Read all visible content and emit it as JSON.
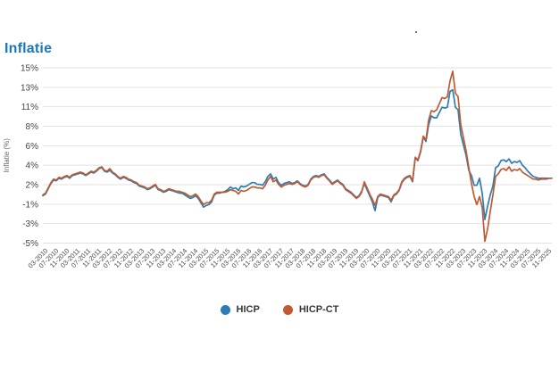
{
  "title": "Inflatie",
  "colors": {
    "title": "#1a78b6",
    "grid": "#e2e2e2",
    "y_axis_text": "#454545",
    "x_axis_text": "#4d4d4d",
    "axis_title_text": "#666666",
    "legend_text": "#383838",
    "hicp": "#2d7db3",
    "hicp_ct": "#c05a32"
  },
  "chart_data": {
    "type": "line",
    "title": "Inflatie",
    "xlabel": "",
    "ylabel": "Inflatie (%)",
    "ylim": [
      -5,
      15
    ],
    "grid": true,
    "legend_position": "bottom-center",
    "y_tick_labels": [
      "15%",
      "13%",
      "11%",
      "8%",
      "6%",
      "4%",
      "2%",
      "-1%",
      "-3%",
      "-5%"
    ],
    "x_start": "01-2010",
    "x_end": "11-2025",
    "x_frequency": "monthly",
    "x_tick_first_index": 2,
    "x_tick_step": 4,
    "x_tick_labels": [
      "03-2010",
      "07-2010",
      "11-2010",
      "03-2011",
      "07-2011",
      "11-2011",
      "03-2012",
      "07-2012",
      "11-2012",
      "03-2013",
      "07-2013",
      "11-2013",
      "03-2014",
      "07-2014",
      "11-2014",
      "03-2015",
      "07-2015",
      "11-2015",
      "03-2016",
      "07-2016",
      "11-2016",
      "03-2017",
      "07-2017",
      "11-2017",
      "03-2018",
      "07-2018",
      "11-2018",
      "03-2019",
      "07-2019",
      "11-2019",
      "03-2020",
      "07-2020",
      "11-2020",
      "03-2021",
      "07-2021",
      "11-2021",
      "03-2022",
      "07-2022",
      "11-2022",
      "03-2023",
      "07-2023",
      "11-2023",
      "03-2024",
      "07-2024",
      "11-2024",
      "03-2025",
      "07-2025",
      "11-2025"
    ],
    "series": [
      {
        "name": "HICP",
        "color": "#2d7db3",
        "values_by_year": {
          "2010": [
            0.4,
            0.6,
            1.2,
            1.8,
            2.2,
            2.1,
            2.4,
            2.3,
            2.5,
            2.6,
            2.4,
            2.7
          ],
          "2011": [
            2.8,
            2.9,
            3.0,
            2.9,
            2.7,
            2.9,
            3.1,
            3.0,
            3.2,
            3.5,
            3.6,
            3.2
          ],
          "2012": [
            3.1,
            3.3,
            3.0,
            2.8,
            2.5,
            2.3,
            2.5,
            2.4,
            2.2,
            2.1,
            1.9,
            1.8
          ],
          "2013": [
            1.5,
            1.4,
            1.3,
            1.1,
            1.2,
            1.4,
            1.6,
            1.1,
            1.0,
            0.8,
            0.9,
            1.1
          ],
          "2014": [
            1.0,
            0.9,
            0.8,
            0.7,
            0.7,
            0.5,
            0.3,
            0.1,
            0.2,
            0.4,
            0.1,
            -0.4
          ],
          "2015": [
            -0.9,
            -0.7,
            -0.6,
            -0.3,
            0.5,
            0.7,
            0.7,
            0.8,
            0.9,
            1.1,
            1.4,
            1.2
          ],
          "2016": [
            1.3,
            1.0,
            1.5,
            1.4,
            1.5,
            1.7,
            1.9,
            1.9,
            1.7,
            1.7,
            1.6,
            2.0
          ],
          "2017": [
            2.6,
            2.9,
            2.3,
            2.5,
            1.9,
            1.6,
            1.8,
            1.9,
            2.0,
            1.8,
            1.9,
            2.1
          ],
          "2018": [
            1.8,
            1.6,
            1.5,
            1.7,
            2.3,
            2.6,
            2.7,
            2.6,
            2.8,
            2.9,
            2.5,
            2.2
          ],
          "2019": [
            1.8,
            2.0,
            2.2,
            1.9,
            1.7,
            1.2,
            1.0,
            0.8,
            0.5,
            0.2,
            0.4,
            0.9
          ],
          "2020": [
            1.8,
            1.1,
            0.4,
            -0.3,
            -1.3,
            0.2,
            0.5,
            0.4,
            0.3,
            0.2,
            -0.3,
            0.4
          ],
          "2021": [
            0.6,
            1.0,
            1.9,
            2.3,
            2.5,
            2.6,
            2.0,
            4.7,
            4.4,
            5.4,
            7.1,
            6.6
          ],
          "2022": [
            8.5,
            9.5,
            9.3,
            9.3,
            9.9,
            10.5,
            10.4,
            10.5,
            12.3,
            12.5,
            10.5,
            10.2
          ],
          "2023": [
            7.4,
            6.2,
            5.0,
            3.3,
            2.7,
            1.6,
            1.6,
            2.4,
            0.7,
            -2.3,
            -0.8,
            0.5
          ],
          "2024": [
            1.5,
            3.6,
            3.8,
            4.4,
            4.5,
            4.3,
            4.6,
            4.1,
            4.3,
            4.2,
            4.4,
            3.9
          ],
          "2025": [
            3.6,
            3.2,
            2.9,
            2.6,
            2.5,
            2.4,
            2.4,
            2.4,
            2.4,
            2.4,
            2.4
          ]
        }
      },
      {
        "name": "HICP-CT",
        "color": "#c05a32",
        "values_by_year": {
          "2010": [
            0.5,
            0.7,
            1.3,
            1.9,
            2.3,
            2.2,
            2.5,
            2.4,
            2.6,
            2.7,
            2.5,
            2.8
          ],
          "2011": [
            2.9,
            3.0,
            3.1,
            3.0,
            2.8,
            3.0,
            3.2,
            3.1,
            3.3,
            3.6,
            3.7,
            3.3
          ],
          "2012": [
            3.2,
            3.5,
            3.1,
            2.9,
            2.6,
            2.4,
            2.6,
            2.5,
            2.3,
            2.2,
            2.0,
            1.9
          ],
          "2013": [
            1.6,
            1.5,
            1.4,
            1.2,
            1.3,
            1.5,
            1.7,
            1.2,
            1.1,
            0.9,
            1.0,
            1.2
          ],
          "2014": [
            1.1,
            1.0,
            0.9,
            0.9,
            0.8,
            0.7,
            0.5,
            0.3,
            0.4,
            0.6,
            0.3,
            -0.2
          ],
          "2015": [
            -0.6,
            -0.4,
            -0.4,
            -0.1,
            0.6,
            0.8,
            0.8,
            0.8,
            0.8,
            0.9,
            1.1,
            1.0
          ],
          "2016": [
            0.9,
            0.6,
            1.0,
            0.9,
            1.0,
            1.2,
            1.4,
            1.4,
            1.3,
            1.3,
            1.2,
            1.6
          ],
          "2017": [
            2.2,
            2.6,
            2.0,
            2.2,
            1.7,
            1.4,
            1.6,
            1.7,
            1.8,
            1.7,
            1.8,
            2.0
          ],
          "2018": [
            1.7,
            1.5,
            1.4,
            1.6,
            2.2,
            2.5,
            2.6,
            2.5,
            2.7,
            2.8,
            2.4,
            2.1
          ],
          "2019": [
            1.7,
            1.9,
            2.1,
            1.8,
            1.6,
            1.1,
            0.9,
            0.7,
            0.4,
            0.1,
            0.3,
            0.8
          ],
          "2020": [
            2.0,
            1.3,
            0.6,
            0.0,
            -0.7,
            0.3,
            0.6,
            0.5,
            0.4,
            0.3,
            -0.1,
            0.5
          ],
          "2021": [
            0.7,
            1.1,
            2.0,
            2.4,
            2.6,
            2.7,
            2.1,
            4.8,
            4.5,
            5.5,
            7.2,
            6.8
          ],
          "2022": [
            9.0,
            10.1,
            10.0,
            10.2,
            10.9,
            11.6,
            11.5,
            11.7,
            13.5,
            14.6,
            12.1,
            11.7
          ],
          "2023": [
            8.5,
            7.0,
            5.5,
            3.6,
            1.8,
            0.3,
            -0.6,
            0.3,
            -0.9,
            -4.8,
            -3.4,
            -1.4
          ],
          "2024": [
            0.5,
            2.6,
            2.9,
            3.4,
            3.5,
            3.3,
            3.7,
            3.2,
            3.4,
            3.3,
            3.5,
            3.1
          ],
          "2025": [
            2.9,
            2.7,
            2.5,
            2.3,
            2.3,
            2.2,
            2.3,
            2.3,
            2.3,
            2.4,
            2.4
          ]
        }
      }
    ]
  },
  "legend": {
    "items": [
      {
        "label": "HICP"
      },
      {
        "label": "HICP-CT"
      }
    ]
  }
}
